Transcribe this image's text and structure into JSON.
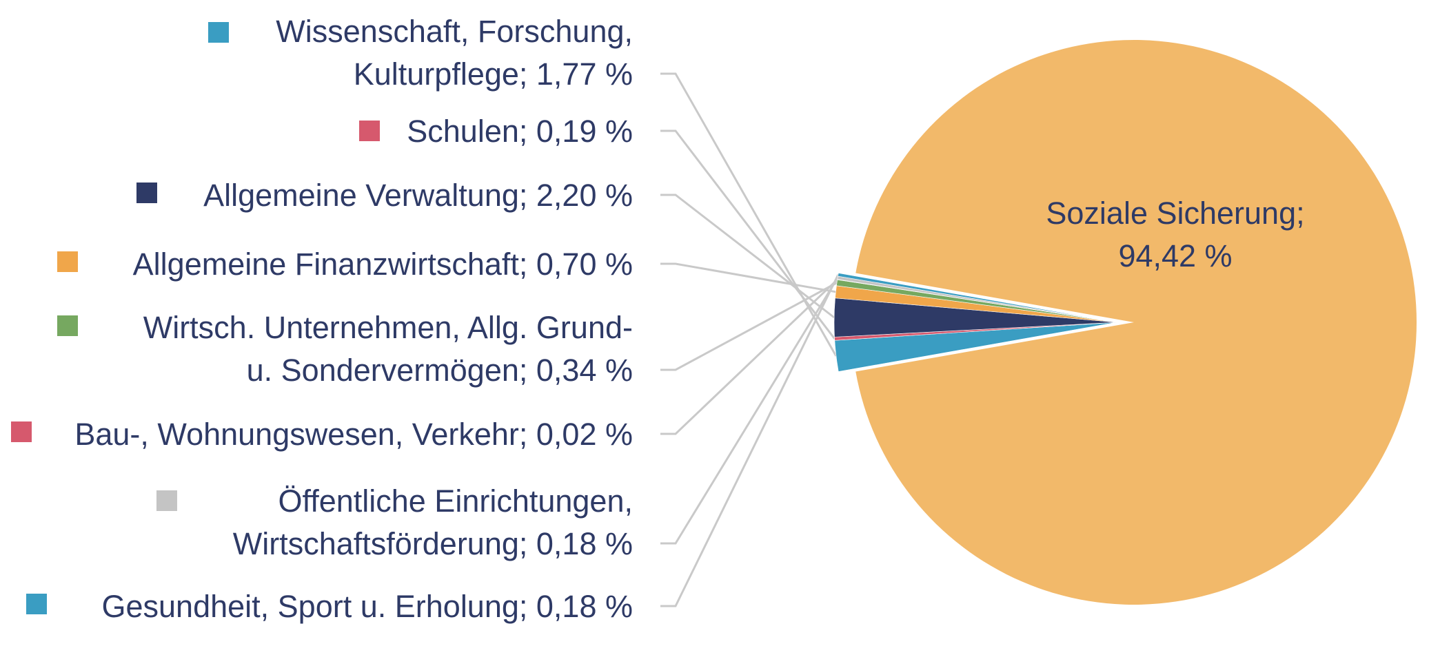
{
  "chart_data": {
    "type": "pie",
    "title": "",
    "series": [
      {
        "values": [
          {
            "category": "Soziale Sicherung",
            "value": 94.42,
            "label_lines": [
              "Soziale Sicherung;",
              "94,42 %"
            ],
            "color": "#f2b96a"
          },
          {
            "category": "Wissenschaft, Forschung, Kulturpflege",
            "value": 1.77,
            "label_lines": [
              "Wissenschaft, Forschung,",
              "Kulturpflege; 1,77 %"
            ],
            "color": "#3a9dc2"
          },
          {
            "category": "Schulen",
            "value": 0.19,
            "label_lines": [
              "Schulen; 0,19 %"
            ],
            "color": "#d6596d"
          },
          {
            "category": "Allgemeine Verwaltung",
            "value": 2.2,
            "label_lines": [
              "Allgemeine Verwaltung; 2,20 %"
            ],
            "color": "#2e3a66"
          },
          {
            "category": "Allgemeine Finanzwirtschaft",
            "value": 0.7,
            "label_lines": [
              "Allgemeine Finanzwirtschaft; 0,70 %"
            ],
            "color": "#f0a64a"
          },
          {
            "category": "Wirtsch. Unternehmen, Allg. Grund- u. Sondervermögen",
            "value": 0.34,
            "label_lines": [
              "Wirtsch. Unternehmen, Allg. Grund-",
              "u. Sondervermögen; 0,34 %"
            ],
            "color": "#76a860"
          },
          {
            "category": "Bau-, Wohnungswesen, Verkehr",
            "value": 0.02,
            "label_lines": [
              "Bau-, Wohnungswesen, Verkehr; 0,02 %"
            ],
            "color": "#d6596d"
          },
          {
            "category": "Öffentliche Einrichtungen, Wirtschaftsförderung",
            "value": 0.18,
            "label_lines": [
              "Öffentliche Einrichtungen,",
              "Wirtschaftsförderung; 0,18 %"
            ],
            "color": "#c4c4c4"
          },
          {
            "category": "Gesundheit, Sport u. Erholung",
            "value": 0.18,
            "label_lines": [
              "Gesundheit, Sport u. Erholung; 0,18 %"
            ],
            "color": "#3a9dc2"
          }
        ]
      }
    ],
    "legend": "left",
    "leader_line_color": "#c9c9c9"
  }
}
